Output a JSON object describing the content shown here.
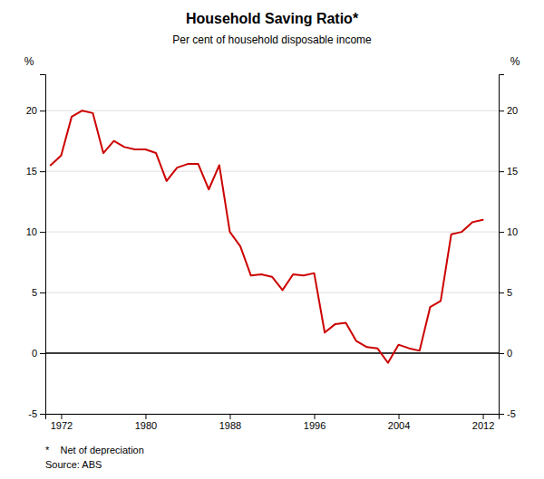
{
  "chart_data": {
    "type": "line",
    "title": "Household Saving Ratio*",
    "subtitle": "Per cent of household disposable income",
    "ylabel": "%",
    "y2label": "%",
    "annotations": [
      "*    Net of depreciation",
      "Source: ABS"
    ],
    "color": "#cc0000",
    "x": [
      1971,
      1972,
      1973,
      1974,
      1975,
      1976,
      1977,
      1978,
      1979,
      1980,
      1981,
      1982,
      1983,
      1984,
      1985,
      1986,
      1987,
      1988,
      1989,
      1990,
      1991,
      1992,
      1993,
      1994,
      1995,
      1996,
      1997,
      1998,
      1999,
      2000,
      2001,
      2002,
      2003,
      2004,
      2005,
      2006,
      2007,
      2008,
      2009,
      2010,
      2011,
      2012
    ],
    "values": [
      15.5,
      16.3,
      19.5,
      20.0,
      19.8,
      16.5,
      17.5,
      17.0,
      16.8,
      16.8,
      16.5,
      14.2,
      15.3,
      15.6,
      15.6,
      13.5,
      15.5,
      10.0,
      8.8,
      6.4,
      6.5,
      6.3,
      5.2,
      6.5,
      6.4,
      6.6,
      1.7,
      2.4,
      2.5,
      1.0,
      0.5,
      0.4,
      -0.8,
      0.7,
      0.4,
      0.2,
      3.8,
      4.3,
      9.8,
      10.0,
      10.8,
      11.0
    ],
    "xlim": [
      1970.5,
      2013.5
    ],
    "xticks": [
      1972,
      1980,
      1988,
      1996,
      2004,
      2012
    ],
    "ylim": [
      -5,
      23
    ],
    "yticks": [
      -5,
      0,
      5,
      10,
      15,
      20
    ],
    "y2lim": [
      -5,
      23
    ],
    "y2ticks": [
      -5,
      0,
      5,
      10,
      15,
      20
    ],
    "grid": true
  }
}
